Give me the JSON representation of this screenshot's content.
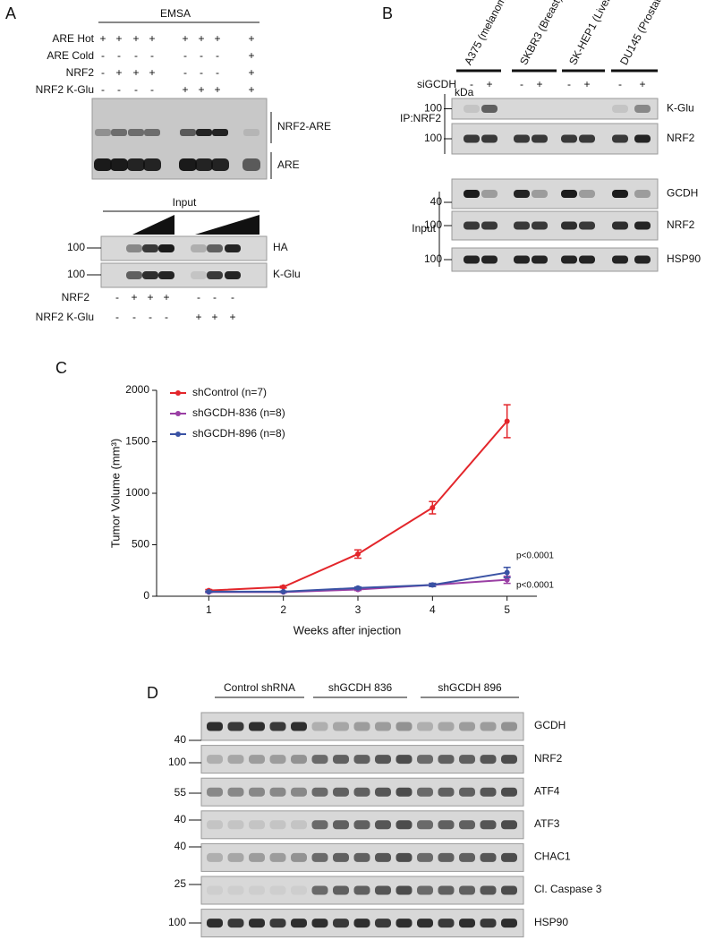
{
  "panels": {
    "a": "A",
    "b": "B",
    "c": "C",
    "d": "D"
  },
  "panel_a": {
    "emsa_title": "EMSA",
    "rows": [
      {
        "label": "ARE Hot",
        "signs": [
          "+",
          "+",
          "+",
          "+",
          "+",
          "+",
          "+",
          "+"
        ]
      },
      {
        "label": "ARE Cold",
        "signs": [
          "-",
          "-",
          "-",
          "-",
          "-",
          "-",
          "-",
          "+"
        ]
      },
      {
        "label": "NRF2",
        "signs": [
          "-",
          "+",
          "+",
          "+",
          "-",
          "-",
          "-",
          "+"
        ]
      },
      {
        "label": "NRF2 K-Glu",
        "signs": [
          "-",
          "-",
          "-",
          "-",
          "+",
          "+",
          "+",
          "+"
        ]
      }
    ],
    "band_labels": [
      "NRF2-ARE",
      "ARE"
    ],
    "input_label": "Input",
    "blots": [
      {
        "label": "HA",
        "marker": "100"
      },
      {
        "label": "K-Glu",
        "marker": "100"
      }
    ],
    "bottom_rows": [
      {
        "label": "NRF2",
        "signs": [
          "-",
          "+",
          "+",
          "+",
          "-",
          "-",
          "-"
        ]
      },
      {
        "label": "NRF2 K-Glu",
        "signs": [
          "-",
          "-",
          "-",
          "-",
          "+",
          "+",
          "+"
        ]
      }
    ]
  },
  "panel_b": {
    "cell_lines": [
      "A375 (melanoma)",
      "SKBR3 (Breast)",
      "SK-HEP1 (Liver)",
      "DU145 (Prostate)"
    ],
    "sigcdh": {
      "label": "siGCDH",
      "signs": [
        "-",
        "+",
        "-",
        "+",
        "-",
        "+",
        "-",
        "+"
      ]
    },
    "kda": "kDa",
    "ip_label": "IP:NRF2",
    "input_label": "Input",
    "blots": [
      {
        "label": "K-Glu",
        "marker": "100"
      },
      {
        "label": "NRF2",
        "marker": "100"
      },
      {
        "label": "GCDH",
        "marker": "40"
      },
      {
        "label": "NRF2",
        "marker": "100"
      },
      {
        "label": "HSP90",
        "marker": "100"
      }
    ]
  },
  "chart_data": {
    "type": "line",
    "x_label": "Weeks after injection",
    "y_label": "Tumor Volume (mm³)",
    "x": [
      1,
      2,
      3,
      4,
      5
    ],
    "xlim": [
      0.3,
      5.4
    ],
    "xticks": [
      1,
      2,
      3,
      4,
      5
    ],
    "ylim": [
      0,
      2000
    ],
    "yticks": [
      0,
      500,
      1000,
      1500,
      2000
    ],
    "series": [
      {
        "name": "shControl (n=7)",
        "color": "#e3262b",
        "values": [
          55,
          90,
          410,
          860,
          1700
        ],
        "errors": [
          10,
          10,
          40,
          60,
          160
        ]
      },
      {
        "name": "shGCDH-836 (n=8)",
        "color": "#9a3fa4",
        "values": [
          40,
          40,
          65,
          110,
          160
        ],
        "errors": [
          5,
          5,
          10,
          15,
          35
        ]
      },
      {
        "name": "shGCDH-896 (n=8)",
        "color": "#3a52a4",
        "values": [
          45,
          45,
          80,
          110,
          230
        ],
        "errors": [
          5,
          5,
          10,
          15,
          50
        ]
      }
    ],
    "annotations": [
      "p<0.0001",
      "p<0.0001"
    ]
  },
  "panel_d": {
    "groups": [
      "Control shRNA",
      "shGCDH 836",
      "shGCDH 896"
    ],
    "blots": [
      {
        "label": "GCDH",
        "marker": "40"
      },
      {
        "label": "NRF2",
        "marker": "100"
      },
      {
        "label": "ATF4",
        "marker": "55"
      },
      {
        "label": "ATF3",
        "marker": "40"
      },
      {
        "label": "CHAC1",
        "marker": "40"
      },
      {
        "label": "Cl. Caspase 3",
        "marker": "25"
      },
      {
        "label": "HSP90",
        "marker": "100"
      }
    ]
  }
}
